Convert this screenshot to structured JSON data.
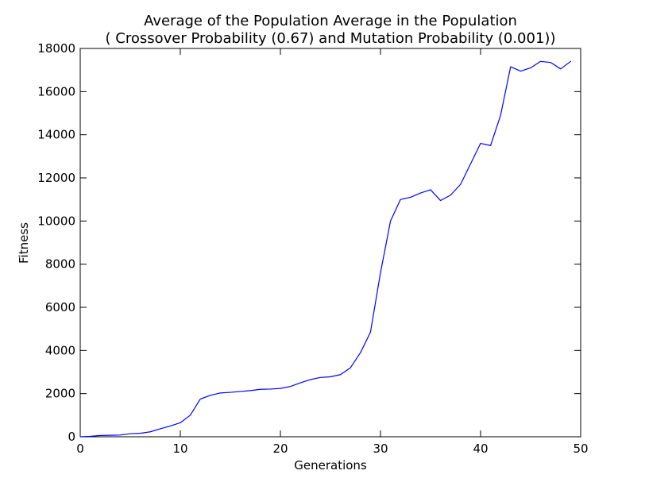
{
  "chart_data": {
    "type": "line",
    "title": "Average of the Population Average in the Population",
    "subtitle": "( Crossover Probability (0.67) and Mutation Probability (0.001))",
    "xlabel": "Generations",
    "ylabel": "Fitness",
    "xlim": [
      0,
      50
    ],
    "ylim": [
      0,
      18000
    ],
    "xticks": [
      0,
      10,
      20,
      30,
      40,
      50
    ],
    "yticks": [
      0,
      2000,
      4000,
      6000,
      8000,
      10000,
      12000,
      14000,
      16000,
      18000
    ],
    "grid": false,
    "legend": "none",
    "series": [
      {
        "color": "#0000ff",
        "x": [
          0,
          1,
          2,
          3,
          4,
          5,
          6,
          7,
          8,
          9,
          10,
          11,
          12,
          13,
          14,
          15,
          16,
          17,
          18,
          19,
          20,
          21,
          22,
          23,
          24,
          25,
          26,
          27,
          28,
          29,
          30,
          31,
          32,
          33,
          34,
          35,
          36,
          37,
          38,
          39,
          40,
          41,
          42,
          43,
          44,
          45,
          46,
          47,
          48,
          49
        ],
        "values": [
          0,
          20,
          60,
          70,
          80,
          140,
          160,
          230,
          370,
          500,
          650,
          1000,
          1750,
          1920,
          2030,
          2060,
          2100,
          2140,
          2200,
          2210,
          2240,
          2330,
          2500,
          2650,
          2750,
          2780,
          2880,
          3200,
          3900,
          4850,
          7600,
          10000,
          11000,
          11100,
          11300,
          11450,
          10950,
          11200,
          11700,
          12650,
          13600,
          13500,
          14900,
          17150,
          16950,
          17100,
          17400,
          17350,
          17050,
          17400
        ]
      }
    ]
  }
}
